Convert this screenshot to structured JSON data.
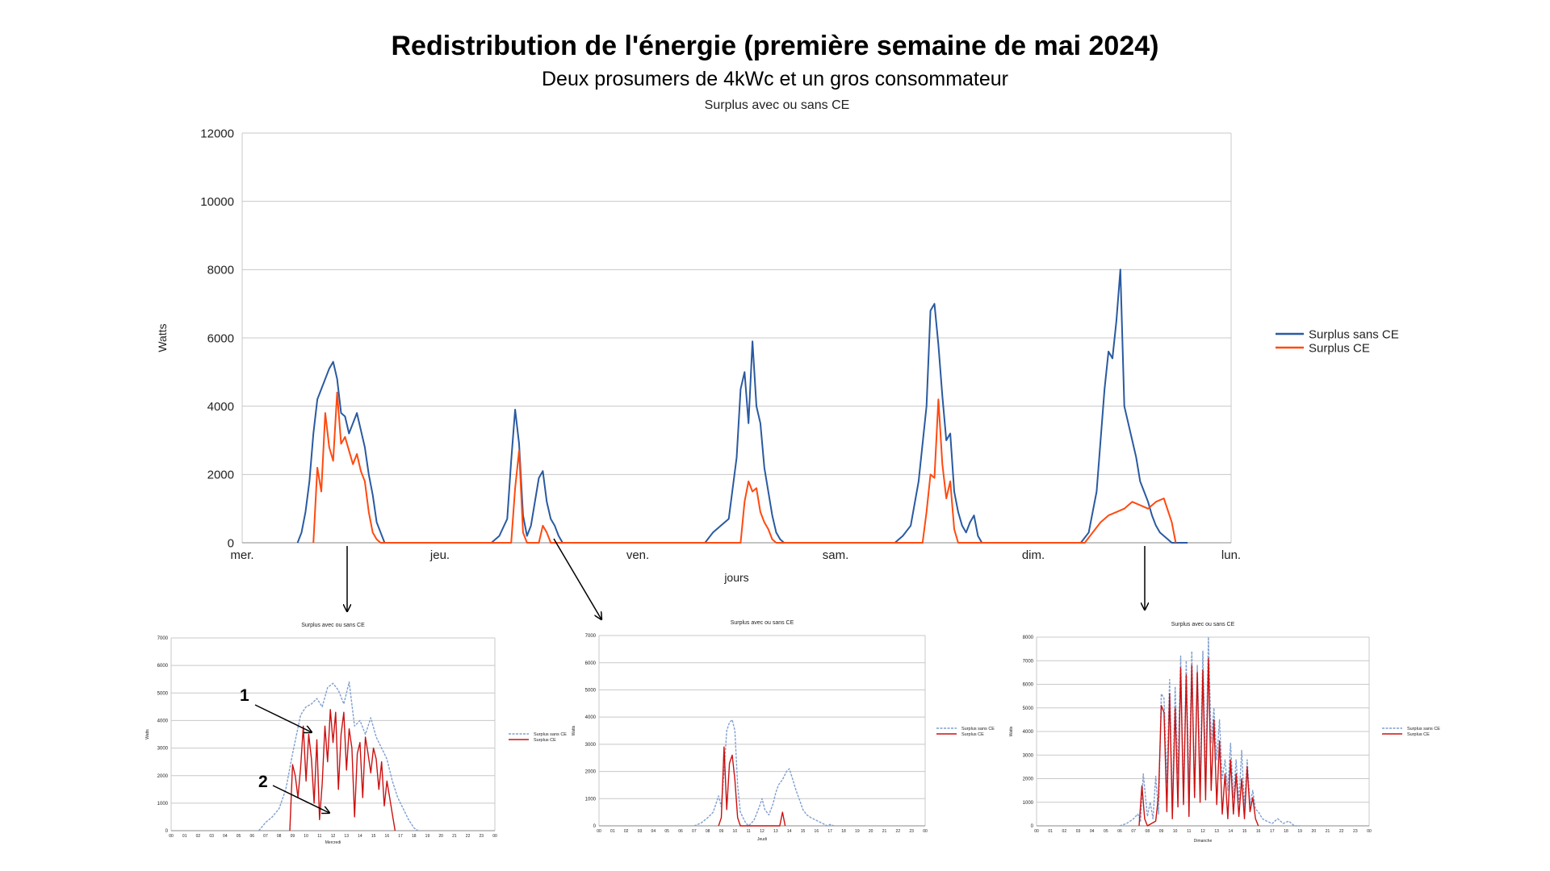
{
  "page": {
    "title": "Redistribution de l'énergie (première semaine de mai 2024)",
    "subtitle": "Deux prosumers de 4kWc  et un gros consommateur"
  },
  "colors": {
    "sans_ce": "#2a5aa0",
    "ce_main": "#ff4a10",
    "sans_ce_inset": "#7f9fd0",
    "ce_inset": "#cc1010",
    "grid": "#c8c8c8"
  },
  "chart_data": [
    {
      "type": "line",
      "title": "Surplus avec ou sans CE",
      "xlabel": "jours",
      "ylabel": "Watts",
      "ylim": [
        0,
        12000
      ],
      "yticks": [
        "0",
        "2000",
        "4000",
        "6000",
        "8000",
        "10000",
        "12000"
      ],
      "xticks": [
        "mer.",
        "jeu.",
        "ven.",
        "sam.",
        "dim.",
        "lun."
      ],
      "legend_position": "right",
      "series": [
        {
          "name": "Surplus sans CE",
          "x_days": [
            0.28,
            0.3,
            0.32,
            0.34,
            0.36,
            0.38,
            0.4,
            0.42,
            0.44,
            0.46,
            0.48,
            0.5,
            0.52,
            0.54,
            0.56,
            0.58,
            0.6,
            0.62,
            0.64,
            0.66,
            0.68,
            0.7,
            0.72,
            0.74,
            0.76,
            0.78,
            1.26,
            1.3,
            1.34,
            1.36,
            1.38,
            1.4,
            1.42,
            1.44,
            1.46,
            1.48,
            1.5,
            1.52,
            1.54,
            1.56,
            1.58,
            1.6,
            1.62,
            1.64,
            1.66,
            1.68,
            1.7,
            1.72,
            1.76,
            2.34,
            2.38,
            2.42,
            2.46,
            2.5,
            2.52,
            2.54,
            2.56,
            2.58,
            2.6,
            2.62,
            2.64,
            2.66,
            2.68,
            2.7,
            2.72,
            2.74,
            2.76,
            2.8,
            3.3,
            3.34,
            3.38,
            3.42,
            3.46,
            3.48,
            3.5,
            3.52,
            3.54,
            3.56,
            3.58,
            3.6,
            3.62,
            3.64,
            3.66,
            3.68,
            3.7,
            3.72,
            3.74,
            3.76,
            3.78,
            3.8,
            4.24,
            4.28,
            4.32,
            4.36,
            4.38,
            4.4,
            4.42,
            4.44,
            4.46,
            4.48,
            4.5,
            4.52,
            4.54,
            4.56,
            4.58,
            4.6,
            4.62,
            4.64,
            4.66,
            4.68,
            4.7,
            4.72,
            4.74,
            4.78
          ],
          "values": [
            0,
            300,
            900,
            1800,
            3200,
            4200,
            4500,
            4800,
            5100,
            5300,
            4800,
            3800,
            3700,
            3200,
            3500,
            3800,
            3300,
            2800,
            2000,
            1400,
            600,
            300,
            0,
            0,
            0,
            0,
            0,
            200,
            700,
            2400,
            3900,
            2900,
            800,
            200,
            500,
            1200,
            1900,
            2100,
            1200,
            700,
            500,
            200,
            0,
            0,
            0,
            0,
            0,
            0,
            0,
            0,
            300,
            500,
            700,
            2500,
            4500,
            5000,
            3500,
            5900,
            4000,
            3500,
            2200,
            1500,
            800,
            300,
            100,
            0,
            0,
            0,
            0,
            200,
            500,
            1800,
            4000,
            6800,
            7000,
            5800,
            4300,
            3000,
            3200,
            1500,
            900,
            500,
            300,
            600,
            800,
            200,
            0,
            0,
            0,
            0,
            0,
            300,
            1500,
            4500,
            5600,
            5400,
            6500,
            8000,
            4000,
            3500,
            3000,
            2500,
            1800,
            1500,
            1200,
            800,
            500,
            300,
            200,
            100,
            0,
            0,
            0,
            0
          ]
        },
        {
          "name": "Surplus CE",
          "x_days": [
            0.36,
            0.38,
            0.4,
            0.42,
            0.44,
            0.46,
            0.48,
            0.5,
            0.52,
            0.54,
            0.56,
            0.58,
            0.6,
            0.62,
            0.64,
            0.66,
            0.68,
            0.7,
            1.36,
            1.38,
            1.4,
            1.42,
            1.44,
            1.5,
            1.52,
            1.54,
            1.56,
            1.58,
            2.52,
            2.54,
            2.56,
            2.58,
            2.6,
            2.62,
            2.64,
            2.66,
            2.68,
            2.7,
            3.44,
            3.46,
            3.48,
            3.5,
            3.52,
            3.54,
            3.56,
            3.58,
            3.6,
            3.62,
            4.26,
            4.3,
            4.34,
            4.38,
            4.42,
            4.46,
            4.5,
            4.54,
            4.58,
            4.62,
            4.66,
            4.7,
            4.72
          ],
          "values": [
            0,
            2200,
            1500,
            3800,
            2800,
            2400,
            4400,
            2900,
            3100,
            2700,
            2300,
            2600,
            2100,
            1800,
            900,
            300,
            100,
            0,
            0,
            1600,
            2700,
            300,
            0,
            0,
            500,
            300,
            0,
            0,
            0,
            1200,
            1800,
            1500,
            1600,
            900,
            600,
            400,
            100,
            0,
            0,
            900,
            2000,
            1900,
            4200,
            2300,
            1300,
            1800,
            400,
            0,
            0,
            300,
            600,
            800,
            900,
            1000,
            1200,
            1100,
            1000,
            1200,
            1300,
            600,
            0
          ]
        }
      ]
    },
    {
      "type": "line",
      "title": "Surplus avec ou sans CE",
      "xlabel": "Mercredi",
      "ylabel": "Watts",
      "ylim": [
        0,
        7000
      ],
      "yticks": [
        "0",
        "1000",
        "2000",
        "3000",
        "4000",
        "5000",
        "6000",
        "7000"
      ],
      "xticks": [
        "00",
        "01",
        "02",
        "03",
        "04",
        "05",
        "06",
        "07",
        "08",
        "09",
        "10",
        "11",
        "12",
        "13",
        "14",
        "15",
        "16",
        "17",
        "18",
        "19",
        "20",
        "21",
        "22",
        "23",
        "00"
      ],
      "legend_position": "right",
      "series": [
        {
          "name": "Surplus sans CE",
          "x": [
            6.5,
            7,
            7.5,
            8,
            8.5,
            9,
            9.3,
            9.6,
            10,
            10.4,
            10.8,
            11.2,
            11.6,
            12,
            12.4,
            12.8,
            13.2,
            13.6,
            14,
            14.4,
            14.8,
            15.2,
            15.6,
            16,
            16.4,
            16.8,
            17.2,
            17.6,
            18,
            18.3
          ],
          "values": [
            0,
            300,
            500,
            800,
            1500,
            2800,
            3500,
            4200,
            4500,
            4600,
            4800,
            4500,
            5200,
            5350,
            5100,
            4600,
            5400,
            3800,
            4000,
            3500,
            4100,
            3400,
            3000,
            2600,
            1800,
            1200,
            800,
            400,
            100,
            0
          ]
        },
        {
          "name": "Surplus CE",
          "x": [
            8.8,
            9,
            9.2,
            9.4,
            9.6,
            9.8,
            10,
            10.2,
            10.4,
            10.6,
            10.8,
            11,
            11.2,
            11.4,
            11.6,
            11.8,
            12,
            12.2,
            12.4,
            12.6,
            12.8,
            13,
            13.2,
            13.4,
            13.6,
            13.8,
            14,
            14.2,
            14.4,
            14.6,
            14.8,
            15,
            15.2,
            15.4,
            15.6,
            15.8,
            16,
            16.2,
            16.4,
            16.6
          ],
          "values": [
            0,
            2400,
            2000,
            1200,
            2300,
            3800,
            1800,
            3500,
            2600,
            1000,
            3300,
            400,
            1700,
            3800,
            2500,
            4400,
            3200,
            4300,
            1500,
            3500,
            4300,
            2200,
            3700,
            3000,
            500,
            2800,
            3200,
            1200,
            3400,
            2800,
            2100,
            3000,
            2600,
            1500,
            2500,
            900,
            1800,
            1200,
            600,
            0
          ]
        }
      ],
      "annotations": [
        "1",
        "2"
      ]
    },
    {
      "type": "line",
      "title": "Surplus avec ou sans CE",
      "xlabel": "Jeudi",
      "ylabel": "Watts",
      "ylim": [
        0,
        7000
      ],
      "yticks": [
        "0",
        "1000",
        "2000",
        "3000",
        "4000",
        "5000",
        "6000",
        "7000"
      ],
      "xticks": [
        "00",
        "01",
        "02",
        "03",
        "04",
        "05",
        "06",
        "07",
        "08",
        "09",
        "10",
        "11",
        "12",
        "13",
        "14",
        "15",
        "16",
        "17",
        "18",
        "19",
        "20",
        "21",
        "22",
        "23",
        "00"
      ],
      "legend_position": "right",
      "series": [
        {
          "name": "Surplus sans CE",
          "x": [
            7,
            7.5,
            8,
            8.4,
            8.8,
            9,
            9.2,
            9.4,
            9.6,
            9.8,
            10,
            10.2,
            10.4,
            10.6,
            10.8,
            11,
            11.4,
            11.8,
            12,
            12.2,
            12.5,
            12.8,
            13,
            13.2,
            13.5,
            13.8,
            14,
            14.2,
            14.5,
            14.8,
            15,
            15.3,
            15.6,
            16,
            16.4,
            16.8,
            17,
            17.3
          ],
          "values": [
            0,
            100,
            300,
            500,
            1100,
            700,
            2000,
            3500,
            3800,
            3900,
            3500,
            1500,
            500,
            300,
            100,
            0,
            200,
            700,
            1000,
            600,
            400,
            800,
            1200,
            1500,
            1700,
            2000,
            2100,
            1800,
            1300,
            900,
            600,
            400,
            300,
            200,
            100,
            0,
            50,
            0
          ]
        },
        {
          "name": "Surplus CE",
          "x": [
            8.8,
            9,
            9.2,
            9.4,
            9.6,
            9.8,
            10,
            10.2,
            10.4,
            13.3,
            13.5,
            13.7
          ],
          "values": [
            0,
            300,
            2900,
            600,
            2300,
            2600,
            1700,
            300,
            0,
            0,
            500,
            0
          ]
        }
      ]
    },
    {
      "type": "line",
      "title": "Surplus avec ou sans CE",
      "xlabel": "Dimanche",
      "ylabel": "Watts",
      "ylim": [
        0,
        8000
      ],
      "yticks": [
        "0",
        "1000",
        "2000",
        "3000",
        "4000",
        "5000",
        "6000",
        "7000",
        "8000"
      ],
      "xticks": [
        "00",
        "01",
        "02",
        "03",
        "04",
        "05",
        "06",
        "07",
        "08",
        "09",
        "10",
        "11",
        "12",
        "13",
        "14",
        "15",
        "16",
        "17",
        "18",
        "19",
        "20",
        "21",
        "22",
        "23",
        "00"
      ],
      "legend_position": "right",
      "series": [
        {
          "name": "Surplus sans CE",
          "x": [
            6,
            6.5,
            7,
            7.3,
            7.5,
            7.7,
            8,
            8.2,
            8.4,
            8.6,
            8.8,
            9,
            9.2,
            9.4,
            9.6,
            9.8,
            10,
            10.2,
            10.4,
            10.6,
            10.8,
            11,
            11.2,
            11.4,
            11.6,
            11.8,
            12,
            12.2,
            12.4,
            12.6,
            12.8,
            13,
            13.2,
            13.4,
            13.6,
            13.8,
            14,
            14.2,
            14.4,
            14.6,
            14.8,
            15,
            15.2,
            15.4,
            15.6,
            15.8,
            16,
            16.3,
            16.6,
            17,
            17.4,
            17.8,
            18.2,
            18.6,
            19
          ],
          "values": [
            0,
            100,
            300,
            500,
            200,
            2200,
            400,
            1000,
            300,
            2100,
            500,
            5600,
            5400,
            1800,
            6200,
            700,
            5900,
            2200,
            7200,
            1000,
            7000,
            1500,
            7400,
            1200,
            6800,
            1800,
            7400,
            2000,
            8000,
            3500,
            5000,
            2800,
            4500,
            2000,
            2800,
            1500,
            3500,
            1200,
            2800,
            1000,
            3200,
            800,
            2800,
            900,
            1500,
            700,
            600,
            300,
            200,
            100,
            300,
            100,
            200,
            0,
            0
          ]
        },
        {
          "name": "Surplus CE",
          "x": [
            7.4,
            7.6,
            7.8,
            8,
            8.6,
            8.8,
            9,
            9.2,
            9.4,
            9.6,
            9.8,
            10,
            10.2,
            10.4,
            10.6,
            10.8,
            11,
            11.2,
            11.4,
            11.6,
            11.8,
            12,
            12.2,
            12.4,
            12.6,
            12.8,
            13,
            13.2,
            13.4,
            13.6,
            13.8,
            14,
            14.2,
            14.4,
            14.6,
            14.8,
            15,
            15.2,
            15.4,
            15.6,
            15.8,
            16
          ],
          "values": [
            0,
            1700,
            300,
            0,
            200,
            1300,
            5100,
            4800,
            600,
            5600,
            300,
            5000,
            800,
            6700,
            900,
            6400,
            400,
            6800,
            1200,
            6500,
            1000,
            6600,
            1100,
            7100,
            1500,
            4500,
            900,
            3600,
            500,
            2200,
            300,
            2800,
            500,
            2200,
            400,
            2000,
            300,
            2500,
            600,
            1200,
            300,
            0
          ]
        }
      ]
    }
  ]
}
